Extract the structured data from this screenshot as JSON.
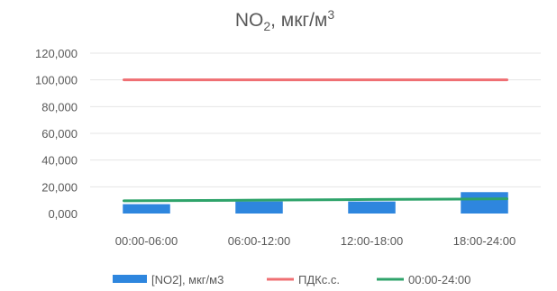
{
  "chart_data": {
    "type": "bar",
    "title": {
      "base": "NO",
      "sub": "2",
      "rest": ", мкг/м",
      "sup": "3"
    },
    "categories": [
      "00:00-06:00",
      "06:00-12:00",
      "12:00-18:00",
      "18:00-24:00"
    ],
    "ylim": [
      0,
      120000
    ],
    "yticks": [
      "0,000",
      "20,000",
      "40,000",
      "60,000",
      "80,000",
      "100,000",
      "120,000"
    ],
    "grid": true,
    "legend_position": "bottom",
    "series": [
      {
        "name": "[NO2], мкг/м3",
        "kind": "bar",
        "color": "#2e86de",
        "values": [
          7000,
          9000,
          9000,
          16000
        ]
      },
      {
        "name": "ПДКс.с.",
        "kind": "line",
        "color": "#ef6f73",
        "values": [
          100000,
          100000,
          100000,
          100000
        ]
      },
      {
        "name": "00:00-24:00",
        "kind": "line",
        "color": "#2ea36a",
        "values": [
          9500,
          10000,
          10500,
          11000
        ]
      }
    ]
  }
}
